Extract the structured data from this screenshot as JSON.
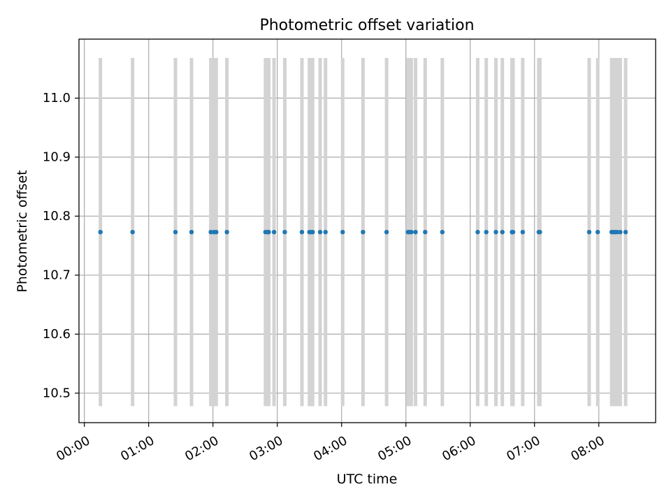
{
  "chart_data": {
    "type": "scatter",
    "title": "Photometric offset variation",
    "xlabel": "UTC time",
    "ylabel": "Photometric offset",
    "x_ticks": [
      "00:00",
      "01:00",
      "02:00",
      "03:00",
      "04:00",
      "05:00",
      "06:00",
      "07:00",
      "08:00"
    ],
    "y_ticks": [
      "10.5",
      "10.6",
      "10.7",
      "10.8",
      "10.9",
      "11.0"
    ],
    "xlim": [
      "23:55",
      "08:53"
    ],
    "ylim": [
      10.45,
      11.1
    ],
    "grid": true,
    "legend": "none",
    "colors": {
      "points": "#1f77b4",
      "bars": "#d3d3d3",
      "grid": "#b0b0b0"
    },
    "error_range": [
      10.478,
      11.068
    ],
    "series": [
      {
        "x": [
          "00:15",
          "00:45",
          "01:25",
          "01:40",
          "01:58",
          "02:01",
          "02:03",
          "02:13",
          "02:49",
          "02:51",
          "02:52",
          "02:57",
          "03:07",
          "03:23",
          "03:30",
          "03:32",
          "03:33",
          "03:40",
          "03:45",
          "04:01",
          "04:20",
          "04:42",
          "05:02",
          "05:03",
          "05:05",
          "05:09",
          "05:18",
          "05:34",
          "06:07",
          "06:15",
          "06:24",
          "06:30",
          "06:39",
          "06:40",
          "06:49",
          "07:04",
          "07:05",
          "07:51",
          "07:59",
          "08:12",
          "08:14",
          "08:15",
          "08:17",
          "08:20",
          "08:25"
        ],
        "y": [
          10.773,
          10.773,
          10.773,
          10.773,
          10.773,
          10.773,
          10.773,
          10.773,
          10.773,
          10.773,
          10.773,
          10.773,
          10.773,
          10.773,
          10.773,
          10.773,
          10.773,
          10.773,
          10.773,
          10.773,
          10.773,
          10.773,
          10.773,
          10.773,
          10.773,
          10.773,
          10.773,
          10.773,
          10.773,
          10.773,
          10.773,
          10.773,
          10.773,
          10.773,
          10.773,
          10.773,
          10.773,
          10.773,
          10.773,
          10.773,
          10.773,
          10.773,
          10.773,
          10.773,
          10.773
        ]
      }
    ]
  }
}
